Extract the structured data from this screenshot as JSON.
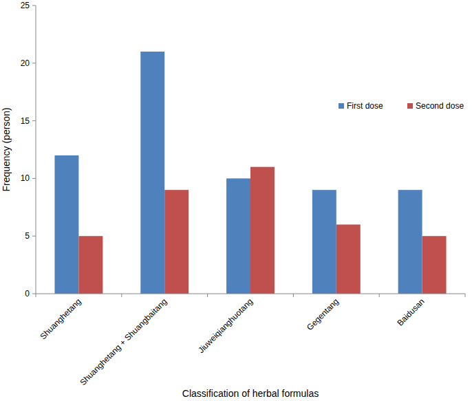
{
  "chart_data": {
    "type": "bar",
    "categories": [
      "Shuanghetang",
      "Shuanghetang + Shuangbaitang",
      "Jiuweiqianghuotang",
      "Gegentang",
      "Baidusan"
    ],
    "series": [
      {
        "name": "First dose",
        "color": "#4f81bd",
        "values": [
          12,
          21,
          10,
          9,
          9
        ]
      },
      {
        "name": "Second dose",
        "color": "#c0504d",
        "values": [
          5,
          9,
          11,
          6,
          5
        ]
      }
    ],
    "x_label": "Classification of herbal formulas",
    "y_label": "Frequency (person)",
    "ylim": [
      0,
      25
    ],
    "yticks": [
      0,
      5,
      10,
      15,
      20,
      25
    ],
    "grid": false,
    "legend": "right"
  }
}
